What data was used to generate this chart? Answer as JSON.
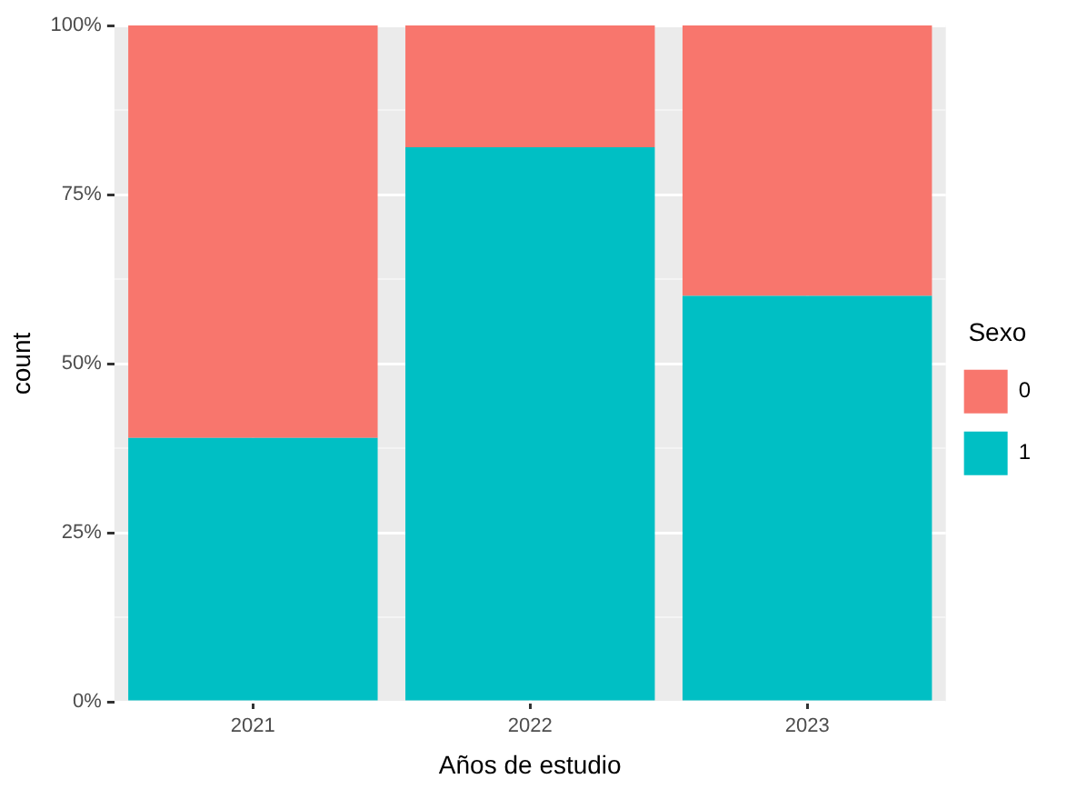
{
  "chart_data": {
    "type": "bar",
    "stacked": true,
    "xlabel": "Años de estudio",
    "ylabel": "count",
    "legend_title": "Sexo",
    "legend": "right",
    "grid": true,
    "categories": [
      "2021",
      "2022",
      "2023"
    ],
    "ylim": [
      0,
      100
    ],
    "yticks": [
      {
        "value": 0,
        "label": "0%"
      },
      {
        "value": 25,
        "label": "25%"
      },
      {
        "value": 50,
        "label": "50%"
      },
      {
        "value": 75,
        "label": "75%"
      },
      {
        "value": 100,
        "label": "100%"
      }
    ],
    "series": [
      {
        "name": "1",
        "color": "#00bfc4",
        "values": [
          39,
          82,
          60
        ]
      },
      {
        "name": "0",
        "color": "#f8766d",
        "values": [
          61,
          18,
          40
        ]
      }
    ]
  }
}
